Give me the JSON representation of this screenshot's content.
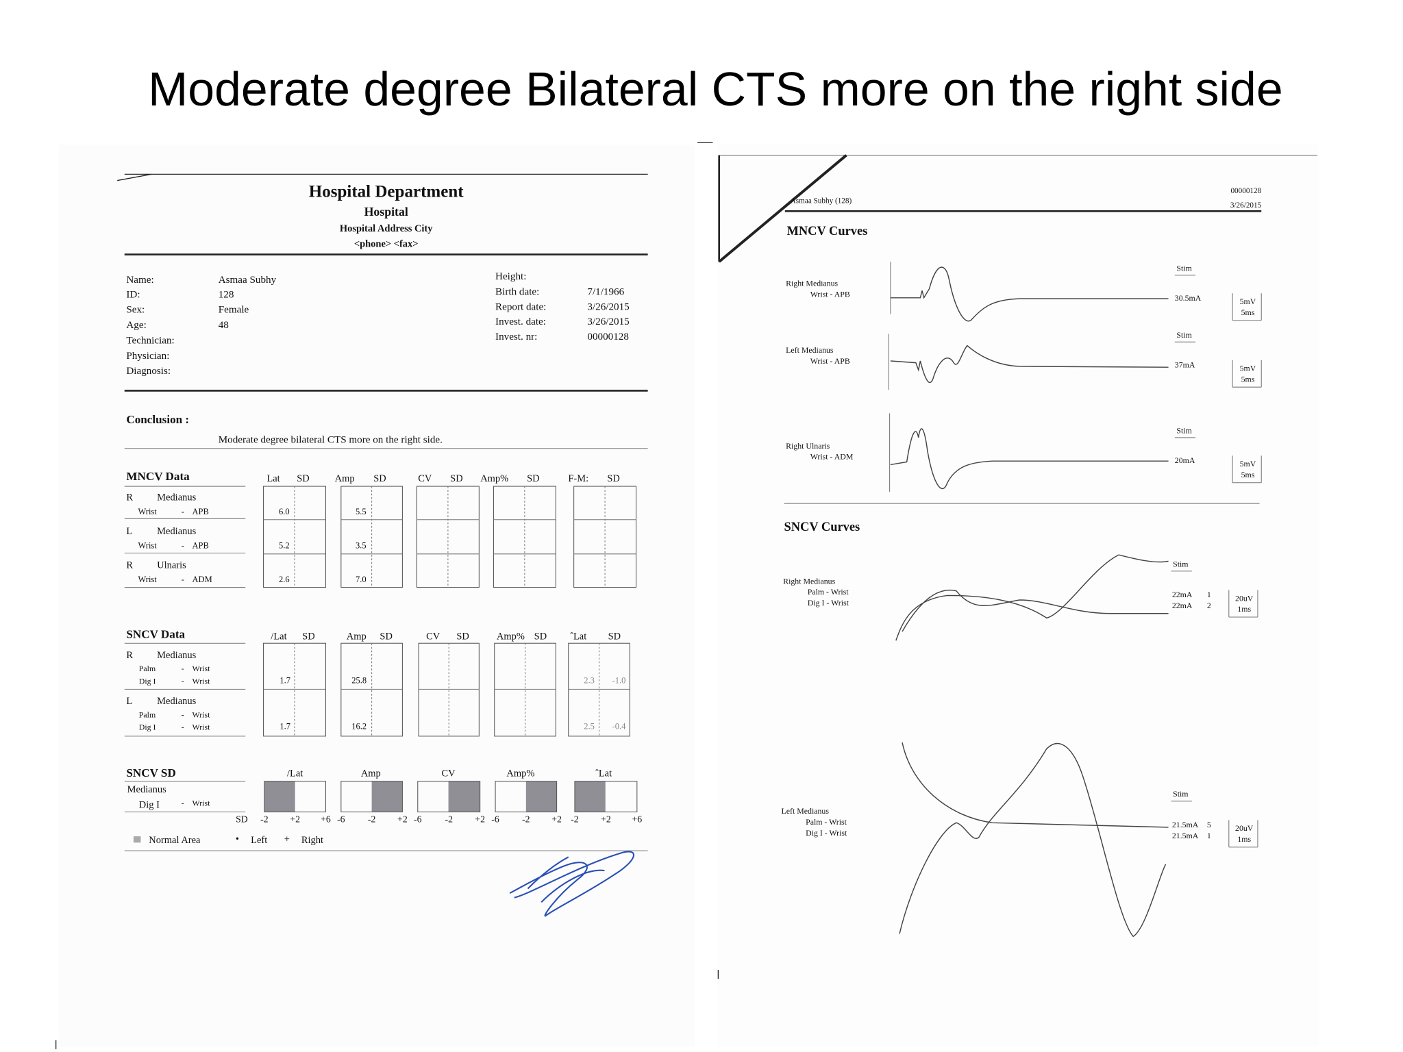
{
  "slide_title": "Moderate degree Bilateral CTS more on the right side",
  "report": {
    "header": {
      "department": "Hospital Department",
      "hospital": "Hospital",
      "address": "Hospital Address  City",
      "contact": "<phone>  <fax>"
    },
    "left_fields": [
      {
        "label": "Name:",
        "value": "Asmaa Subhy"
      },
      {
        "label": "ID:",
        "value": "128"
      },
      {
        "label": "Sex:",
        "value": "Female"
      },
      {
        "label": "Age:",
        "value": "48"
      },
      {
        "label": "Technician:"
      },
      {
        "label": "Physician:"
      },
      {
        "label": "Diagnosis:"
      }
    ],
    "right_fields": [
      {
        "label": "Height:"
      },
      {
        "label": "Birth date:",
        "value": "7/1/1966"
      },
      {
        "label": "Report date:",
        "value": "3/26/2015"
      },
      {
        "label": "Invest. date:",
        "value": "3/26/2015"
      },
      {
        "label": "Invest. nr:",
        "value": "00000128"
      }
    ],
    "conclusion": {
      "label": "Conclusion :",
      "text": "Moderate degree bilateral CTS more on the right side."
    },
    "mncv": {
      "title": "MNCV Data",
      "columns": [
        "Lat",
        "SD",
        "Amp",
        "SD",
        "CV",
        "SD",
        "Amp%",
        "SD",
        "F-M:",
        "SD"
      ],
      "rows": [
        {
          "side": "R",
          "nerve": "Medianus",
          "from": "Wrist",
          "sep": "-",
          "to": "APB",
          "lat": "6.0",
          "amp": "5.5"
        },
        {
          "side": "L",
          "nerve": "Medianus",
          "from": "Wrist",
          "sep": "-",
          "to": "APB",
          "lat": "5.2",
          "amp": "3.5"
        },
        {
          "side": "R",
          "nerve": "Ulnaris",
          "from": "Wrist",
          "sep": "-",
          "to": "ADM",
          "lat": "2.6",
          "amp": "7.0"
        }
      ]
    },
    "sncv": {
      "title": "SNCV Data",
      "columns": [
        "/Lat",
        "SD",
        "Amp",
        "SD",
        "CV",
        "SD",
        "Amp%",
        "SD",
        "ˆLat",
        "SD"
      ],
      "rows": [
        {
          "side": "R",
          "nerve": "Medianus",
          "segments": [
            {
              "from": "Palm",
              "sep": "-",
              "to": "Wrist"
            },
            {
              "from": "Dig I",
              "sep": "-",
              "to": "Wrist"
            }
          ],
          "lat": "1.7",
          "amp": "25.8",
          "peak_lat": "2.3",
          "peak_sd": "-1.0"
        },
        {
          "side": "L",
          "nerve": "Medianus",
          "segments": [
            {
              "from": "Palm",
              "sep": "-",
              "to": "Wrist"
            },
            {
              "from": "Dig I",
              "sep": "-",
              "to": "Wrist"
            }
          ],
          "lat": "1.7",
          "amp": "16.2",
          "peak_lat": "2.5",
          "peak_sd": "-0.4"
        }
      ]
    },
    "sncv_sd": {
      "title": "SNCV SD",
      "nerve": "Medianus",
      "segment": {
        "from": "Dig I",
        "sep": "-",
        "to": "Wrist"
      },
      "columns": [
        "/Lat",
        "Amp",
        "CV",
        "Amp%",
        "ˆLat"
      ],
      "sd_label": "SD",
      "scales": [
        [
          "-2",
          "+2",
          "+6"
        ],
        [
          "-6",
          "-2",
          "+2"
        ],
        [
          "-6",
          "-2",
          "+2"
        ],
        [
          "-6",
          "-2",
          "+2"
        ],
        [
          "-2",
          "+2",
          "+6"
        ]
      ],
      "normal_area": "Normal Area",
      "legend": [
        {
          "symbol": "•",
          "label": "Left"
        },
        {
          "symbol": "+",
          "label": "Right"
        }
      ]
    }
  },
  "curves": {
    "patient": "Asmaa Subhy (128)",
    "record": "00000128",
    "date": "3/26/2015",
    "mncv_title": "MNCV Curves",
    "mncv": [
      {
        "nerve": "Right Medianus",
        "segment": "Wrist - APB",
        "stim_label": "Stim",
        "stim": "30.5mA",
        "scale": [
          "5mV",
          "5ms"
        ]
      },
      {
        "nerve": "Left Medianus",
        "segment": "Wrist - APB",
        "stim_label": "Stim",
        "stim": "37mA",
        "scale": [
          "5mV",
          "5ms"
        ]
      },
      {
        "nerve": "Right Ulnaris",
        "segment": "Wrist - ADM",
        "stim_label": "Stim",
        "stim": "20mA",
        "scale": [
          "5mV",
          "5ms"
        ]
      }
    ],
    "sncv_title": "SNCV Curves",
    "sncv": [
      {
        "nerve": "Right Medianus",
        "segments": [
          "Palm - Wrist",
          "Dig I - Wrist"
        ],
        "stim_label": "Stim",
        "stim": [
          "22mA",
          "22mA"
        ],
        "channels": [
          "1",
          "2"
        ],
        "scale": [
          "20uV",
          "1ms"
        ]
      },
      {
        "nerve": "Left Medianus",
        "segments": [
          "Palm - Wrist",
          "Dig I - Wrist"
        ],
        "stim_label": "Stim",
        "stim": [
          "21.5mA",
          "21.5mA"
        ],
        "channels": [
          "5",
          "1"
        ],
        "scale": [
          "20uV",
          "1ms"
        ]
      }
    ]
  }
}
